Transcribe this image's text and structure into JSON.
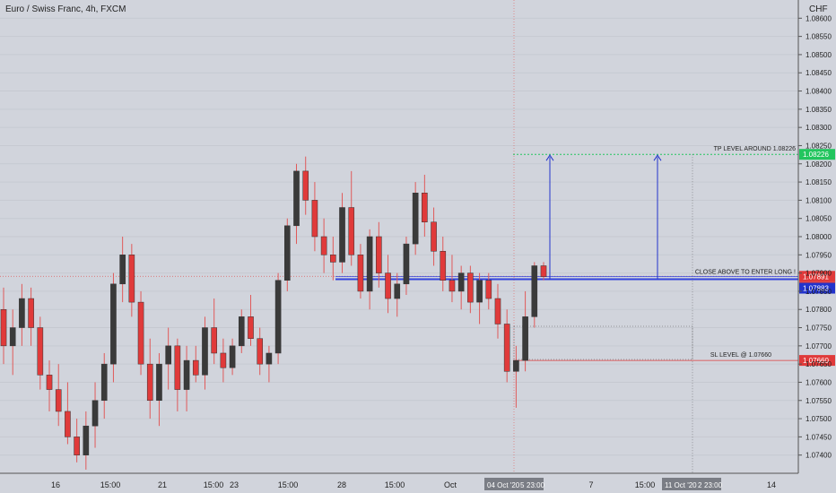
{
  "header": {
    "title": "Euro / Swiss Franc, 4h, FXCM"
  },
  "currency": "CHF",
  "colors": {
    "background": "#d1d4dc",
    "up_candle": "#3a3a3a",
    "down_candle": "#e03a3a",
    "wick": "#e05a5a",
    "tp_line": "#22c55e",
    "entry_line": "#3344dd",
    "sl_line": "#e03a3a",
    "arrow": "#2233cc"
  },
  "chart_data": {
    "type": "candlestick",
    "title": "Euro / Swiss Franc, 4h, FXCM",
    "y_axis": {
      "range": [
        1.0735,
        1.0865
      ],
      "ticks": [
        "1.07400",
        "1.07450",
        "1.07500",
        "1.07550",
        "1.07600",
        "1.07650",
        "1.07700",
        "1.07750",
        "1.07800",
        "1.07850",
        "1.07900",
        "1.07950",
        "1.08000",
        "1.08050",
        "1.08100",
        "1.08150",
        "1.08200",
        "1.08250",
        "1.08300",
        "1.08350",
        "1.08400",
        "1.08450",
        "1.08500",
        "1.08550",
        "1.08600"
      ]
    },
    "x_axis": {
      "ticks": [
        "16",
        "15:00",
        "21",
        "15:00",
        "23",
        "15:00",
        "28",
        "15:00",
        "Oct",
        "7",
        "15:00",
        "14"
      ],
      "highlighted_ticks": [
        "04 Oct '20",
        "5",
        "23:00",
        "11 Oct '20",
        "2",
        "23:00"
      ]
    },
    "candles": [
      {
        "o": 1.078,
        "h": 1.0786,
        "l": 1.0765,
        "c": 1.077
      },
      {
        "o": 1.077,
        "h": 1.078,
        "l": 1.0762,
        "c": 1.0775
      },
      {
        "o": 1.0775,
        "h": 1.0787,
        "l": 1.077,
        "c": 1.0783
      },
      {
        "o": 1.0783,
        "h": 1.0786,
        "l": 1.077,
        "c": 1.0775
      },
      {
        "o": 1.0775,
        "h": 1.0778,
        "l": 1.0758,
        "c": 1.0762
      },
      {
        "o": 1.0762,
        "h": 1.0766,
        "l": 1.0752,
        "c": 1.0758
      },
      {
        "o": 1.0758,
        "h": 1.0765,
        "l": 1.0748,
        "c": 1.0752
      },
      {
        "o": 1.0752,
        "h": 1.076,
        "l": 1.0743,
        "c": 1.0745
      },
      {
        "o": 1.0745,
        "h": 1.075,
        "l": 1.0738,
        "c": 1.074
      },
      {
        "o": 1.074,
        "h": 1.0752,
        "l": 1.0736,
        "c": 1.0748
      },
      {
        "o": 1.0748,
        "h": 1.076,
        "l": 1.0742,
        "c": 1.0755
      },
      {
        "o": 1.0755,
        "h": 1.0768,
        "l": 1.075,
        "c": 1.0765
      },
      {
        "o": 1.0765,
        "h": 1.079,
        "l": 1.076,
        "c": 1.0787
      },
      {
        "o": 1.0787,
        "h": 1.08,
        "l": 1.0782,
        "c": 1.0795
      },
      {
        "o": 1.0795,
        "h": 1.0798,
        "l": 1.0778,
        "c": 1.0782
      },
      {
        "o": 1.0782,
        "h": 1.0785,
        "l": 1.0762,
        "c": 1.0765
      },
      {
        "o": 1.0765,
        "h": 1.0772,
        "l": 1.075,
        "c": 1.0755
      },
      {
        "o": 1.0755,
        "h": 1.0768,
        "l": 1.0748,
        "c": 1.0765
      },
      {
        "o": 1.0765,
        "h": 1.0775,
        "l": 1.0758,
        "c": 1.077
      },
      {
        "o": 1.077,
        "h": 1.0772,
        "l": 1.0752,
        "c": 1.0758
      },
      {
        "o": 1.0758,
        "h": 1.077,
        "l": 1.0752,
        "c": 1.0766
      },
      {
        "o": 1.0766,
        "h": 1.077,
        "l": 1.076,
        "c": 1.0762
      },
      {
        "o": 1.0762,
        "h": 1.0778,
        "l": 1.0758,
        "c": 1.0775
      },
      {
        "o": 1.0775,
        "h": 1.0783,
        "l": 1.0765,
        "c": 1.0768
      },
      {
        "o": 1.0768,
        "h": 1.0772,
        "l": 1.076,
        "c": 1.0764
      },
      {
        "o": 1.0764,
        "h": 1.0772,
        "l": 1.0762,
        "c": 1.077
      },
      {
        "o": 1.077,
        "h": 1.078,
        "l": 1.0768,
        "c": 1.0778
      },
      {
        "o": 1.0778,
        "h": 1.0784,
        "l": 1.077,
        "c": 1.0772
      },
      {
        "o": 1.0772,
        "h": 1.0775,
        "l": 1.0762,
        "c": 1.0765
      },
      {
        "o": 1.0765,
        "h": 1.077,
        "l": 1.076,
        "c": 1.0768
      },
      {
        "o": 1.0768,
        "h": 1.079,
        "l": 1.0765,
        "c": 1.0788
      },
      {
        "o": 1.0788,
        "h": 1.0805,
        "l": 1.0785,
        "c": 1.0803
      },
      {
        "o": 1.0803,
        "h": 1.082,
        "l": 1.0798,
        "c": 1.0818
      },
      {
        "o": 1.0818,
        "h": 1.0822,
        "l": 1.0806,
        "c": 1.081
      },
      {
        "o": 1.081,
        "h": 1.0815,
        "l": 1.0796,
        "c": 1.08
      },
      {
        "o": 1.08,
        "h": 1.0805,
        "l": 1.079,
        "c": 1.0795
      },
      {
        "o": 1.0795,
        "h": 1.08,
        "l": 1.0788,
        "c": 1.0793
      },
      {
        "o": 1.0793,
        "h": 1.0812,
        "l": 1.079,
        "c": 1.0808
      },
      {
        "o": 1.0808,
        "h": 1.0818,
        "l": 1.0792,
        "c": 1.0795
      },
      {
        "o": 1.0795,
        "h": 1.0798,
        "l": 1.0783,
        "c": 1.0785
      },
      {
        "o": 1.0785,
        "h": 1.0802,
        "l": 1.078,
        "c": 1.08
      },
      {
        "o": 1.08,
        "h": 1.0804,
        "l": 1.0786,
        "c": 1.079
      },
      {
        "o": 1.079,
        "h": 1.0795,
        "l": 1.0779,
        "c": 1.0783
      },
      {
        "o": 1.0783,
        "h": 1.079,
        "l": 1.0778,
        "c": 1.0787
      },
      {
        "o": 1.0787,
        "h": 1.08,
        "l": 1.0784,
        "c": 1.0798
      },
      {
        "o": 1.0798,
        "h": 1.0815,
        "l": 1.0795,
        "c": 1.0812
      },
      {
        "o": 1.0812,
        "h": 1.0817,
        "l": 1.08,
        "c": 1.0804
      },
      {
        "o": 1.0804,
        "h": 1.0808,
        "l": 1.0792,
        "c": 1.0796
      },
      {
        "o": 1.0796,
        "h": 1.08,
        "l": 1.0785,
        "c": 1.0788
      },
      {
        "o": 1.0788,
        "h": 1.0795,
        "l": 1.0782,
        "c": 1.0785
      },
      {
        "o": 1.0785,
        "h": 1.0792,
        "l": 1.078,
        "c": 1.079
      },
      {
        "o": 1.079,
        "h": 1.0792,
        "l": 1.0779,
        "c": 1.0782
      },
      {
        "o": 1.0782,
        "h": 1.079,
        "l": 1.0776,
        "c": 1.0788
      },
      {
        "o": 1.0788,
        "h": 1.079,
        "l": 1.078,
        "c": 1.0783
      },
      {
        "o": 1.0783,
        "h": 1.0787,
        "l": 1.0772,
        "c": 1.0776
      },
      {
        "o": 1.0776,
        "h": 1.078,
        "l": 1.076,
        "c": 1.0763
      },
      {
        "o": 1.0763,
        "h": 1.077,
        "l": 1.0753,
        "c": 1.0766
      },
      {
        "o": 1.0766,
        "h": 1.0785,
        "l": 1.0763,
        "c": 1.0778
      },
      {
        "o": 1.0778,
        "h": 1.0793,
        "l": 1.0775,
        "c": 1.0792
      },
      {
        "o": 1.0792,
        "h": 1.0793,
        "l": 1.0788,
        "c": 1.0789
      }
    ],
    "annotations": [
      {
        "kind": "tp",
        "label": "TP LEVEL AROUND 1.08226",
        "price": 1.08226
      },
      {
        "kind": "entry",
        "label": "CLOSE ABOVE TO ENTER LONG !",
        "price": 1.07883
      },
      {
        "kind": "sl",
        "label": "SL LEVEL @ 1.07660",
        "price": 1.0766
      }
    ],
    "price_labels": [
      {
        "text": "1.08226",
        "color": "#22c55e"
      },
      {
        "text": "1.07891",
        "color": "#e03a3a"
      },
      {
        "text": "03:41:21",
        "color": "#e03a3a"
      },
      {
        "text": "1.07883",
        "color": "#2233cc"
      },
      {
        "text": "1.07660",
        "color": "#e03a3a"
      }
    ]
  }
}
